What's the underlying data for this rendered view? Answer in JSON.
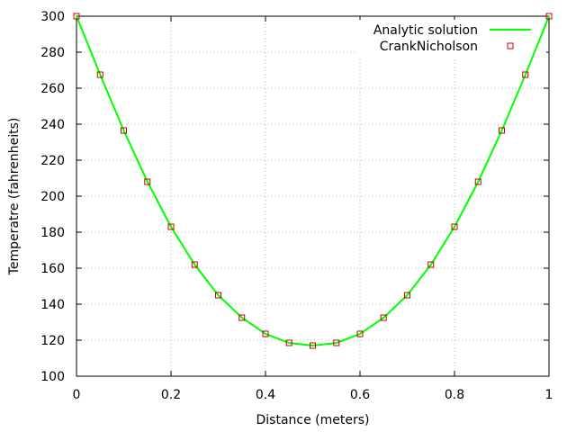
{
  "chart_data": {
    "type": "line",
    "title": "",
    "xlabel": "Distance (meters)",
    "ylabel": "Temperatre (fahrenheits)",
    "xlim": [
      0,
      1
    ],
    "ylim": [
      100,
      300
    ],
    "xticks": [
      "0",
      "0.2",
      "0.4",
      "0.6",
      "0.8",
      "1"
    ],
    "yticks": [
      "100",
      "120",
      "140",
      "160",
      "180",
      "200",
      "220",
      "240",
      "260",
      "280",
      "300"
    ],
    "grid": true,
    "legend_position": "top-right",
    "series": [
      {
        "name": "Analytic solution",
        "style": "line",
        "color": "#00ff00",
        "x": [
          0,
          0.05,
          0.1,
          0.15,
          0.2,
          0.25,
          0.3,
          0.35,
          0.4,
          0.45,
          0.5,
          0.55,
          0.6,
          0.65,
          0.7,
          0.75,
          0.8,
          0.85,
          0.9,
          0.95,
          1.0
        ],
        "y": [
          300,
          267.5,
          236.5,
          208,
          183,
          162,
          145,
          132.5,
          123.5,
          118.5,
          117,
          118.5,
          123.5,
          132.5,
          145,
          162,
          183,
          208,
          236.5,
          267.5,
          300
        ]
      },
      {
        "name": "CrankNicholson",
        "style": "markers",
        "color": "#cc0000",
        "marker": "open-square",
        "x": [
          0,
          0.05,
          0.1,
          0.15,
          0.2,
          0.25,
          0.3,
          0.35,
          0.4,
          0.45,
          0.5,
          0.55,
          0.6,
          0.65,
          0.7,
          0.75,
          0.8,
          0.85,
          0.9,
          0.95,
          1.0
        ],
        "y": [
          300,
          267.5,
          236.5,
          208,
          183,
          162,
          145,
          132.5,
          123.5,
          118.5,
          117,
          118.5,
          123.5,
          132.5,
          145,
          162,
          183,
          208,
          236.5,
          267.5,
          300
        ]
      }
    ]
  }
}
